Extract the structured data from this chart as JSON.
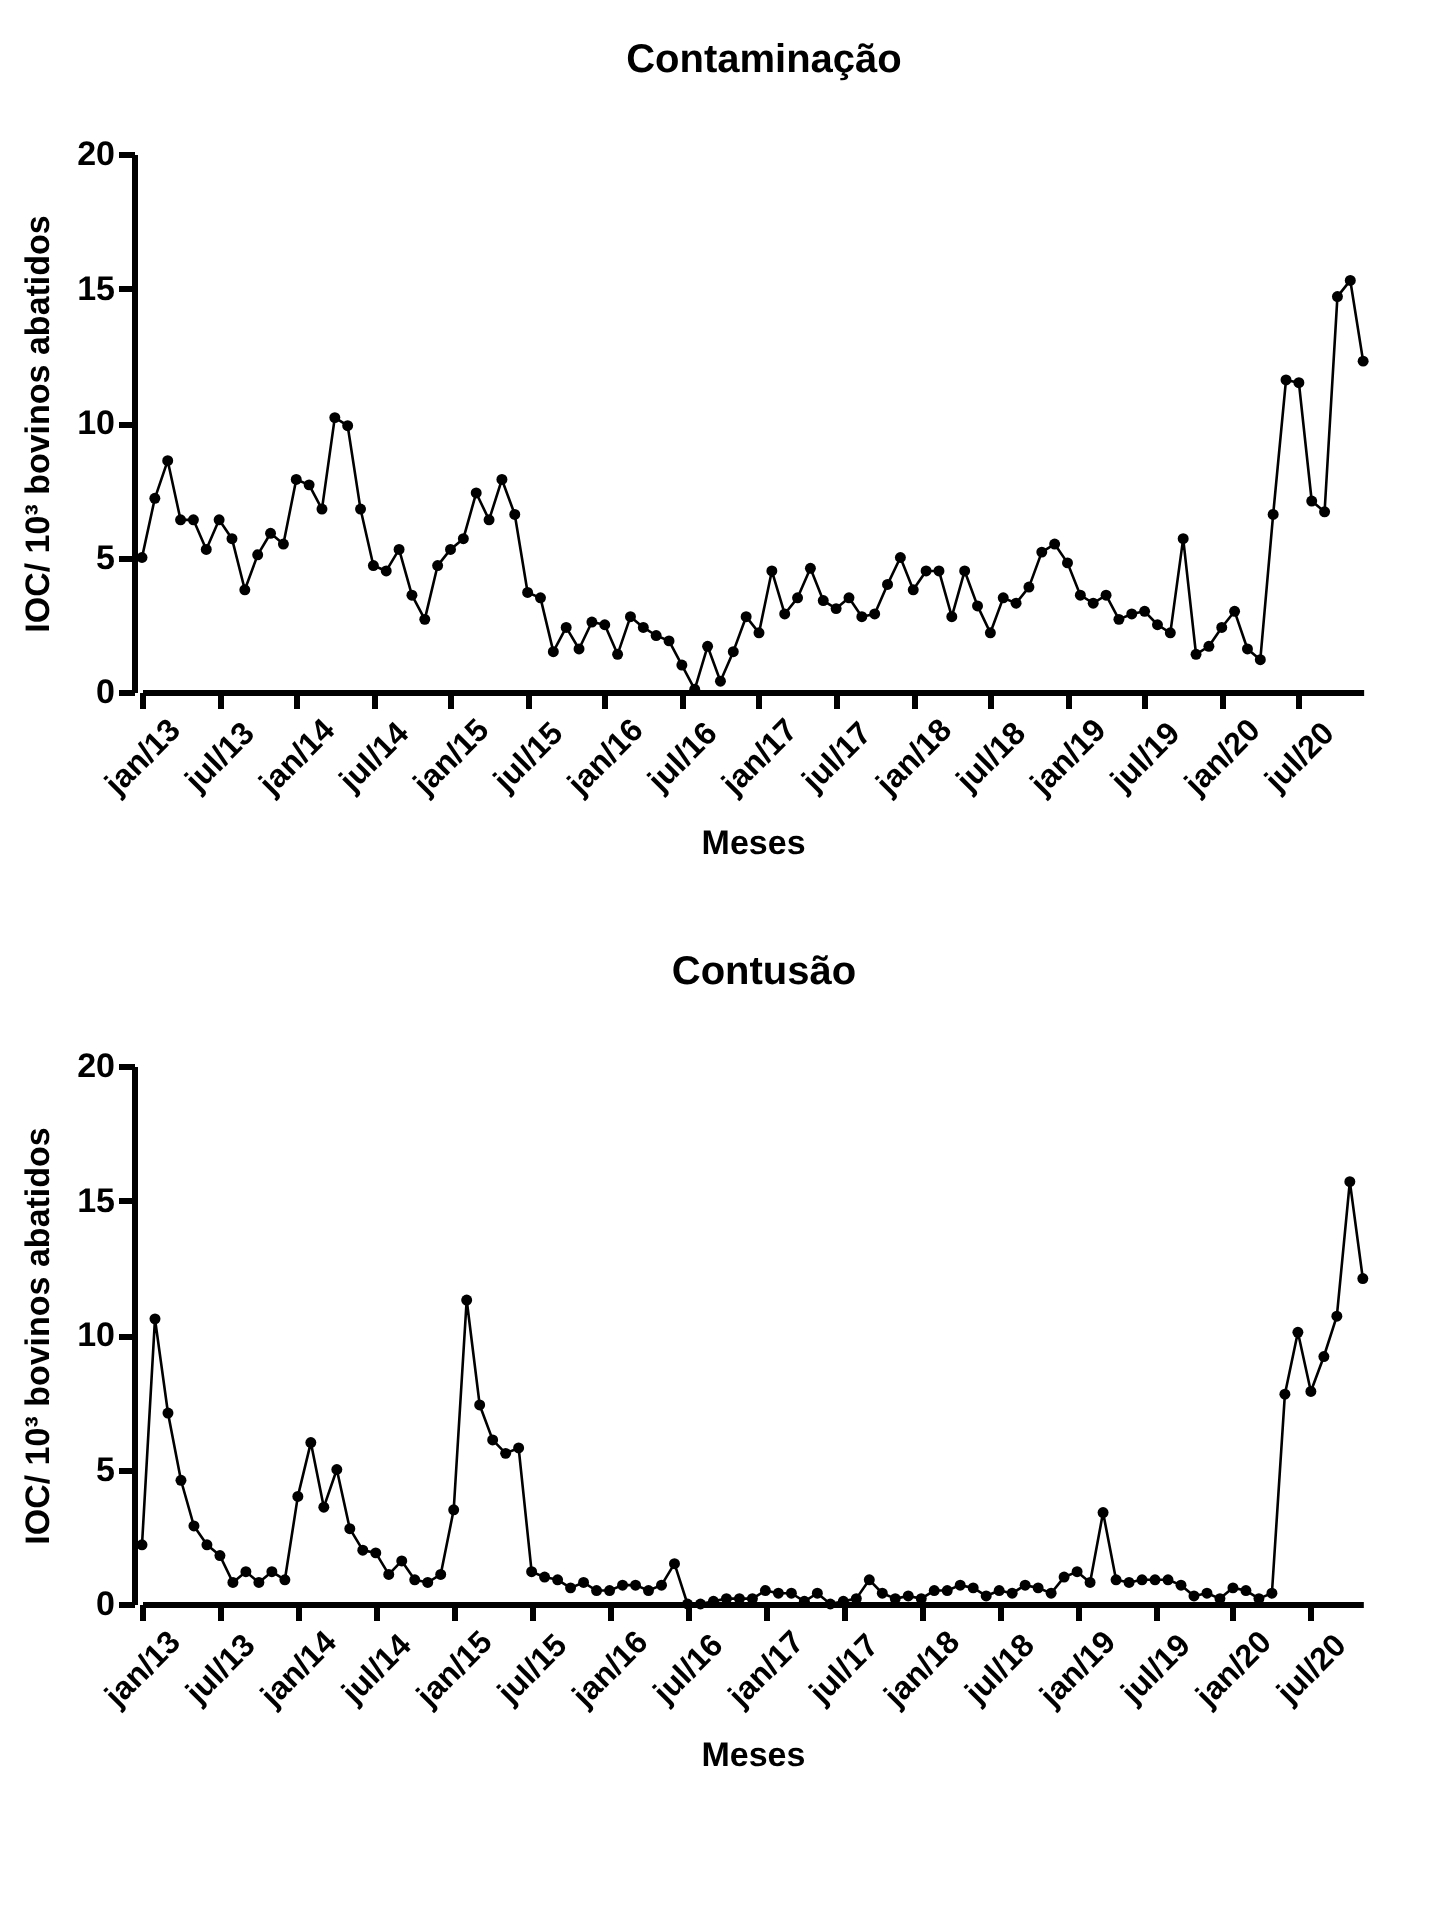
{
  "chart_data": [
    {
      "type": "line",
      "title": "Contaminação",
      "xlabel": "Meses",
      "ylabel": "IOC/ 10³ bovinos abatidos",
      "categories": [
        "jan/13",
        null,
        null,
        null,
        null,
        null,
        "jul/13",
        null,
        null,
        null,
        null,
        null,
        "jan/14",
        null,
        null,
        null,
        null,
        null,
        "jul/14",
        null,
        null,
        null,
        null,
        null,
        "jan/15",
        null,
        null,
        null,
        null,
        null,
        "jul/15",
        null,
        null,
        null,
        null,
        null,
        "jan/16",
        null,
        null,
        null,
        null,
        null,
        "jul/16",
        null,
        null,
        null,
        null,
        null,
        "jan/17",
        null,
        null,
        null,
        null,
        null,
        "jul/17",
        null,
        null,
        null,
        null,
        null,
        "jan/18",
        null,
        null,
        null,
        null,
        null,
        "jul/18",
        null,
        null,
        null,
        null,
        null,
        "jan/19",
        null,
        null,
        null,
        null,
        null,
        "jul/19",
        null,
        null,
        null,
        null,
        null,
        "jan/20",
        null,
        null,
        null,
        null,
        null,
        "jul/20",
        null,
        null,
        null,
        null,
        null
      ],
      "series": [
        {
          "color": "#000000",
          "values": [
            5.0,
            7.2,
            8.6,
            6.4,
            6.4,
            5.3,
            6.4,
            5.7,
            3.8,
            5.1,
            5.9,
            5.5,
            7.9,
            7.7,
            6.8,
            10.2,
            9.9,
            6.8,
            4.7,
            4.5,
            5.3,
            3.6,
            2.7,
            4.7,
            5.3,
            5.7,
            7.4,
            6.4,
            7.9,
            6.6,
            3.7,
            3.5,
            1.5,
            2.4,
            1.6,
            2.6,
            2.5,
            1.4,
            2.8,
            2.4,
            2.1,
            1.9,
            1.0,
            0.1,
            1.7,
            0.4,
            1.5,
            2.8,
            2.2,
            4.5,
            2.9,
            3.5,
            4.6,
            3.4,
            3.1,
            3.5,
            2.8,
            2.9,
            4.0,
            5.0,
            3.8,
            4.5,
            4.5,
            2.8,
            4.5,
            3.2,
            2.2,
            3.5,
            3.3,
            3.9,
            5.2,
            5.5,
            4.8,
            3.6,
            3.3,
            3.6,
            2.7,
            2.9,
            3.0,
            2.5,
            2.2,
            5.7,
            1.4,
            1.7,
            2.4,
            3.0,
            1.6,
            1.2,
            6.6,
            11.6,
            11.5,
            7.1,
            6.7,
            14.7,
            15.3,
            12.3
          ]
        }
      ],
      "ylim": [
        0,
        20
      ],
      "yticks": [
        0,
        5,
        10,
        15,
        20
      ],
      "grid": false,
      "marker": "circle",
      "line_style": "solid"
    },
    {
      "type": "line",
      "title": "Contusão",
      "xlabel": "Meses",
      "ylabel": "IOC/ 10³ bovinos abatidos",
      "categories": [
        "jan/13",
        null,
        null,
        null,
        null,
        null,
        "jul/13",
        null,
        null,
        null,
        null,
        null,
        "jan/14",
        null,
        null,
        null,
        null,
        null,
        "jul/14",
        null,
        null,
        null,
        null,
        null,
        "jan/15",
        null,
        null,
        null,
        null,
        null,
        "jul/15",
        null,
        null,
        null,
        null,
        null,
        "jan/16",
        null,
        null,
        null,
        null,
        null,
        "jul/16",
        null,
        null,
        null,
        null,
        null,
        "jan/17",
        null,
        null,
        null,
        null,
        null,
        "jul/17",
        null,
        null,
        null,
        null,
        null,
        "jan/18",
        null,
        null,
        null,
        null,
        null,
        "jul/18",
        null,
        null,
        null,
        null,
        null,
        "jan/19",
        null,
        null,
        null,
        null,
        null,
        "jul/19",
        null,
        null,
        null,
        null,
        null,
        "jan/20",
        null,
        null,
        null,
        null,
        null,
        "jul/20",
        null,
        null,
        null,
        null
      ],
      "series": [
        {
          "color": "#000000",
          "values": [
            2.2,
            10.6,
            7.1,
            4.6,
            2.9,
            2.2,
            1.8,
            0.8,
            1.2,
            0.8,
            1.2,
            0.9,
            4.0,
            6.0,
            3.6,
            5.0,
            2.8,
            2.0,
            1.9,
            1.1,
            1.6,
            0.9,
            0.8,
            1.1,
            3.5,
            11.3,
            7.4,
            6.1,
            5.6,
            5.8,
            1.2,
            1.0,
            0.9,
            0.6,
            0.8,
            0.5,
            0.5,
            0.7,
            0.7,
            0.5,
            0.7,
            1.5,
            0.0,
            0.0,
            0.1,
            0.2,
            0.2,
            0.2,
            0.5,
            0.4,
            0.4,
            0.1,
            0.4,
            0.0,
            0.1,
            0.2,
            0.9,
            0.4,
            0.2,
            0.3,
            0.2,
            0.5,
            0.5,
            0.7,
            0.6,
            0.3,
            0.5,
            0.4,
            0.7,
            0.6,
            0.4,
            1.0,
            1.2,
            0.8,
            3.4,
            0.9,
            0.8,
            0.9,
            0.9,
            0.9,
            0.7,
            0.3,
            0.4,
            0.2,
            0.6,
            0.5,
            0.2,
            0.4,
            7.8,
            10.1,
            7.9,
            9.2,
            10.7,
            15.7,
            12.1
          ]
        }
      ],
      "ylim": [
        0,
        20
      ],
      "yticks": [
        0,
        5,
        10,
        15,
        20
      ],
      "grid": false,
      "marker": "circle",
      "line_style": "solid"
    }
  ]
}
